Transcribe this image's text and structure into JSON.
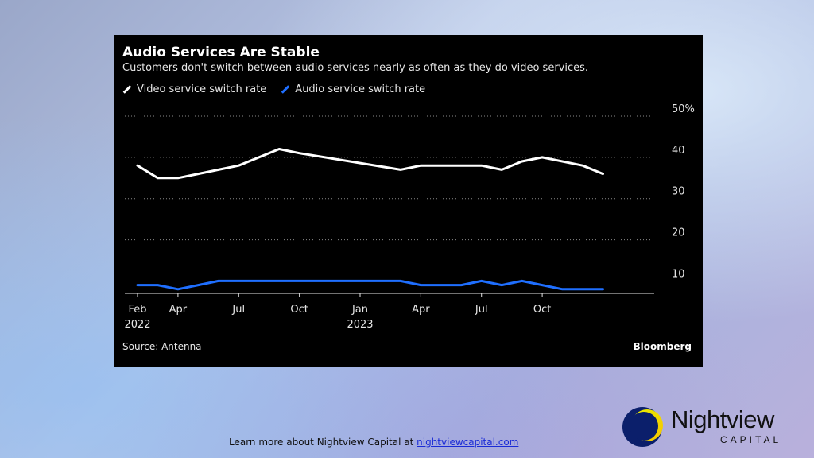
{
  "chart_data": {
    "type": "line",
    "title": "Audio Services Are Stable",
    "subtitle": "Customers don't switch between audio services nearly as often as they do video services.",
    "x_ticks": [
      {
        "month": "2022-02",
        "label": "Feb",
        "sublabel": "2022"
      },
      {
        "month": "2022-04",
        "label": "Apr",
        "sublabel": ""
      },
      {
        "month": "2022-07",
        "label": "Jul",
        "sublabel": ""
      },
      {
        "month": "2022-10",
        "label": "Oct",
        "sublabel": ""
      },
      {
        "month": "2023-01",
        "label": "Jan",
        "sublabel": "2023"
      },
      {
        "month": "2023-04",
        "label": "Apr",
        "sublabel": ""
      },
      {
        "month": "2023-07",
        "label": "Jul",
        "sublabel": ""
      },
      {
        "month": "2023-10",
        "label": "Oct",
        "sublabel": ""
      }
    ],
    "x_range": [
      "2022-02",
      "2023-12"
    ],
    "y_ticks": [
      {
        "value": 10,
        "label": "10"
      },
      {
        "value": 20,
        "label": "20"
      },
      {
        "value": 30,
        "label": "30"
      },
      {
        "value": 40,
        "label": "40"
      },
      {
        "value": 50,
        "label": "50%"
      }
    ],
    "ylim": [
      7,
      50
    ],
    "grid": true,
    "legend_position": "top-left",
    "series": [
      {
        "name": "Video service switch rate",
        "color": "#ffffff",
        "points": [
          [
            "2022-02",
            38
          ],
          [
            "2022-03",
            35
          ],
          [
            "2022-04",
            35
          ],
          [
            "2022-05",
            36
          ],
          [
            "2022-06",
            37
          ],
          [
            "2022-07",
            38
          ],
          [
            "2022-09",
            42
          ],
          [
            "2022-10",
            41
          ],
          [
            "2023-03",
            37
          ],
          [
            "2023-04",
            38
          ],
          [
            "2023-06",
            38
          ],
          [
            "2023-07",
            38
          ],
          [
            "2023-08",
            37
          ],
          [
            "2023-09",
            39
          ],
          [
            "2023-10",
            40
          ],
          [
            "2023-12",
            38
          ],
          [
            "2024-01",
            36
          ]
        ]
      },
      {
        "name": "Audio service switch rate",
        "color": "#1f6fff",
        "points": [
          [
            "2022-02",
            9
          ],
          [
            "2022-03",
            9
          ],
          [
            "2022-04",
            8
          ],
          [
            "2022-05",
            9
          ],
          [
            "2022-06",
            10
          ],
          [
            "2022-07",
            10
          ],
          [
            "2023-03",
            10
          ],
          [
            "2023-04",
            9
          ],
          [
            "2023-06",
            9
          ],
          [
            "2023-07",
            10
          ],
          [
            "2023-08",
            9
          ],
          [
            "2023-09",
            10
          ],
          [
            "2023-10",
            9
          ],
          [
            "2023-11",
            8
          ],
          [
            "2023-12",
            8
          ],
          [
            "2024-01",
            8
          ]
        ]
      }
    ],
    "source": "Source: Antenna",
    "brand": "Bloomberg"
  },
  "footer": {
    "text": "Learn more about Nightview Capital at ",
    "link_text": "nightviewcapital.com"
  },
  "logo": {
    "word": "Nightview",
    "sub": "CAPITAL"
  }
}
